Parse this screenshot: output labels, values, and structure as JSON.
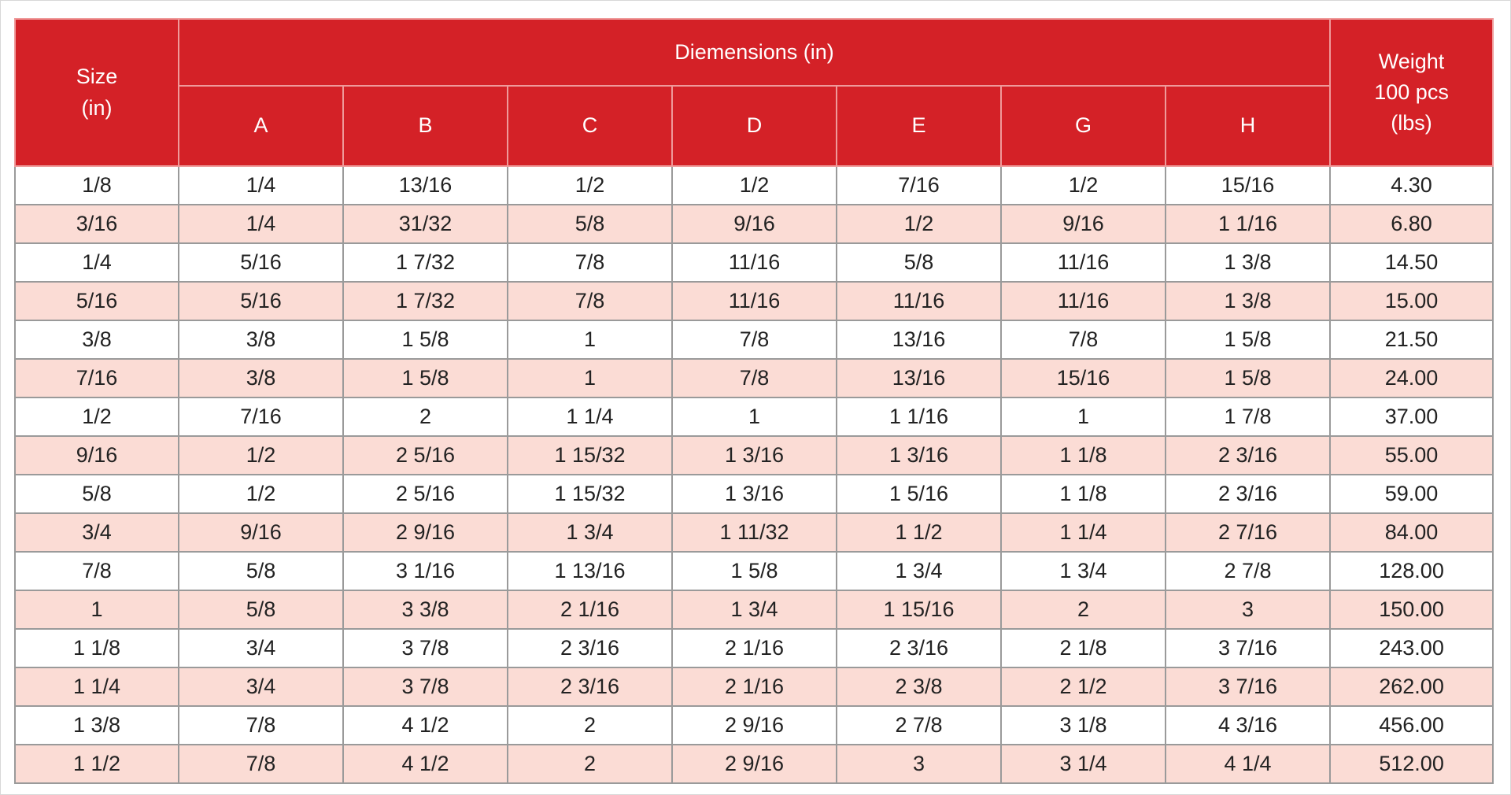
{
  "table": {
    "header": {
      "size_line1": "Size",
      "size_line2": "(in)",
      "group_label": "Diemensions (in)",
      "weight_line1": "Weight",
      "weight_line2": "100 pcs",
      "weight_line3": "(lbs)",
      "dimension_columns": [
        "A",
        "B",
        "C",
        "D",
        "E",
        "G",
        "H"
      ]
    },
    "rows": [
      [
        "1/8",
        "1/4",
        "13/16",
        "1/2",
        "1/2",
        "7/16",
        "1/2",
        "15/16",
        "4.30"
      ],
      [
        "3/16",
        "1/4",
        "31/32",
        "5/8",
        "9/16",
        "1/2",
        "9/16",
        "1 1/16",
        "6.80"
      ],
      [
        "1/4",
        "5/16",
        "1 7/32",
        "7/8",
        "11/16",
        "5/8",
        "11/16",
        "1 3/8",
        "14.50"
      ],
      [
        "5/16",
        "5/16",
        "1 7/32",
        "7/8",
        "11/16",
        "11/16",
        "11/16",
        "1 3/8",
        "15.00"
      ],
      [
        "3/8",
        "3/8",
        "1 5/8",
        "1",
        "7/8",
        "13/16",
        "7/8",
        "1 5/8",
        "21.50"
      ],
      [
        "7/16",
        "3/8",
        "1 5/8",
        "1",
        "7/8",
        "13/16",
        "15/16",
        "1 5/8",
        "24.00"
      ],
      [
        "1/2",
        "7/16",
        "2",
        "1 1/4",
        "1",
        "1 1/16",
        "1",
        "1 7/8",
        "37.00"
      ],
      [
        "9/16",
        "1/2",
        "2 5/16",
        "1 15/32",
        "1 3/16",
        "1 3/16",
        "1 1/8",
        "2 3/16",
        "55.00"
      ],
      [
        "5/8",
        "1/2",
        "2 5/16",
        "1 15/32",
        "1 3/16",
        "1 5/16",
        "1 1/8",
        "2 3/16",
        "59.00"
      ],
      [
        "3/4",
        "9/16",
        "2 9/16",
        "1 3/4",
        "1 11/32",
        "1 1/2",
        "1 1/4",
        "2 7/16",
        "84.00"
      ],
      [
        "7/8",
        "5/8",
        "3 1/16",
        "1 13/16",
        "1 5/8",
        "1 3/4",
        "1 3/4",
        "2 7/8",
        "128.00"
      ],
      [
        "1",
        "5/8",
        "3 3/8",
        "2 1/16",
        "1 3/4",
        "1 15/16",
        "2",
        "3",
        "150.00"
      ],
      [
        "1 1/8",
        "3/4",
        "3 7/8",
        "2 3/16",
        "2 1/16",
        "2 3/16",
        "2 1/8",
        "3 7/16",
        "243.00"
      ],
      [
        "1 1/4",
        "3/4",
        "3 7/8",
        "2 3/16",
        "2 1/16",
        "2 3/8",
        "2 1/2",
        "3 7/16",
        "262.00"
      ],
      [
        "1 3/8",
        "7/8",
        "4 1/2",
        "2",
        "2 9/16",
        "2 7/8",
        "3 1/8",
        "4 3/16",
        "456.00"
      ],
      [
        "1 1/2",
        "7/8",
        "4 1/2",
        "2",
        "2 9/16",
        "3",
        "3 1/4",
        "4 1/4",
        "512.00"
      ]
    ],
    "colors": {
      "header_bg": "#d42127",
      "header_text": "#ffffff",
      "stripe_bg": "#fbdcd5",
      "grid_line": "#9a9a9a"
    }
  }
}
